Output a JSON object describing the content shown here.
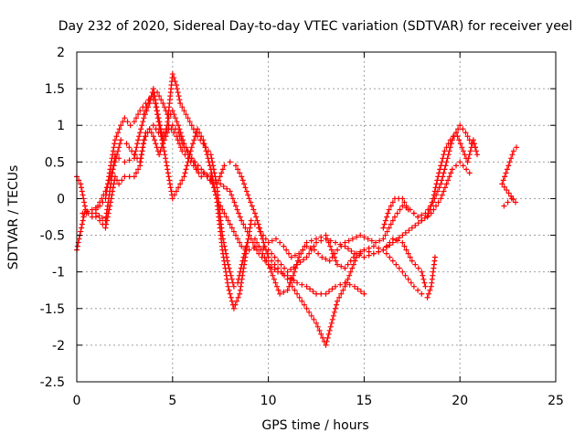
{
  "chart_data": {
    "type": "scatter",
    "title": "Day 232 of 2020, Sidereal Day-to-day VTEC variation (SDTVAR) for receiver yeel",
    "xlabel": "GPS time / hours",
    "ylabel": "SDTVAR / TECUs",
    "xlim": [
      0,
      25
    ],
    "ylim": [
      -2.5,
      2
    ],
    "x_ticks": [
      0,
      5,
      10,
      15,
      20,
      25
    ],
    "y_ticks": [
      -2.5,
      -2,
      -1.5,
      -1,
      -0.5,
      0,
      0.5,
      1,
      1.5,
      2
    ],
    "x_tick_labels": [
      "0",
      "5",
      "10",
      "15",
      "20",
      "25"
    ],
    "y_tick_labels": [
      "-2.5",
      "-2",
      "-1.5",
      "-1",
      "-0.5",
      "0",
      "0.5",
      "1",
      "1.5",
      "2"
    ],
    "grid": true,
    "marker": "plus",
    "color": "#ff0000",
    "series": [
      {
        "points": [
          [
            0.0,
            -0.7
          ],
          [
            0.2,
            -0.45
          ],
          [
            0.4,
            -0.2
          ],
          [
            0.8,
            -0.2
          ],
          [
            1.2,
            -0.3
          ],
          [
            1.5,
            -0.4
          ],
          [
            1.8,
            0.0
          ],
          [
            2.0,
            0.3
          ],
          [
            2.2,
            0.2
          ],
          [
            2.5,
            0.3
          ],
          [
            3.0,
            0.3
          ],
          [
            3.3,
            0.45
          ],
          [
            3.5,
            0.8
          ],
          [
            3.8,
            0.95
          ],
          [
            4.0,
            0.85
          ],
          [
            4.3,
            0.6
          ],
          [
            4.5,
            0.75
          ],
          [
            4.8,
            0.95
          ],
          [
            5.0,
            1.0
          ],
          [
            5.3,
            0.9
          ],
          [
            5.6,
            0.7
          ],
          [
            6.0,
            0.55
          ],
          [
            6.5,
            0.4
          ],
          [
            7.0,
            0.25
          ],
          [
            7.5,
            0.2
          ],
          [
            8.0,
            0.1
          ],
          [
            8.3,
            -0.1
          ],
          [
            8.6,
            -0.3
          ],
          [
            9.0,
            -0.5
          ],
          [
            9.5,
            -0.75
          ],
          [
            10.0,
            -0.9
          ],
          [
            10.5,
            -1.0
          ],
          [
            11.0,
            -1.05
          ],
          [
            11.5,
            -1.15
          ],
          [
            12.0,
            -1.2
          ],
          [
            12.5,
            -1.3
          ],
          [
            13.0,
            -1.3
          ],
          [
            13.5,
            -1.2
          ],
          [
            14.0,
            -1.15
          ],
          [
            14.5,
            -1.2
          ],
          [
            15.0,
            -1.3
          ]
        ]
      },
      {
        "points": [
          [
            0.3,
            -0.2
          ],
          [
            0.8,
            -0.15
          ],
          [
            1.2,
            -0.1
          ],
          [
            1.5,
            0.0
          ],
          [
            1.8,
            0.5
          ],
          [
            2.0,
            0.8
          ],
          [
            2.3,
            1.0
          ],
          [
            2.5,
            1.1
          ],
          [
            2.8,
            1.0
          ],
          [
            3.0,
            1.05
          ],
          [
            3.3,
            1.2
          ],
          [
            3.6,
            1.3
          ],
          [
            3.9,
            1.4
          ],
          [
            4.1,
            1.3
          ],
          [
            4.3,
            1.0
          ],
          [
            4.6,
            0.6
          ],
          [
            4.8,
            0.3
          ],
          [
            5.0,
            0.0
          ],
          [
            5.3,
            0.15
          ],
          [
            5.6,
            0.3
          ],
          [
            6.0,
            0.7
          ],
          [
            6.3,
            0.95
          ],
          [
            6.6,
            0.8
          ],
          [
            7.0,
            0.4
          ],
          [
            7.3,
            0.0
          ],
          [
            7.6,
            -0.15
          ],
          [
            8.0,
            -0.35
          ],
          [
            8.3,
            -0.5
          ],
          [
            8.6,
            -0.65
          ],
          [
            9.0,
            -0.7
          ],
          [
            9.5,
            -0.65
          ],
          [
            10.0,
            -0.7
          ],
          [
            10.5,
            -0.85
          ],
          [
            11.0,
            -1.0
          ],
          [
            11.5,
            -0.9
          ],
          [
            12.0,
            -0.8
          ],
          [
            12.5,
            -0.6
          ],
          [
            13.0,
            -0.55
          ],
          [
            13.5,
            -0.6
          ],
          [
            14.0,
            -0.65
          ],
          [
            14.5,
            -0.75
          ],
          [
            15.0,
            -0.8
          ],
          [
            15.5,
            -0.75
          ],
          [
            16.0,
            -0.7
          ],
          [
            16.5,
            -0.6
          ],
          [
            17.0,
            -0.5
          ],
          [
            17.5,
            -0.4
          ],
          [
            18.0,
            -0.3
          ],
          [
            18.5,
            -0.2
          ],
          [
            19.0,
            0.0
          ],
          [
            19.3,
            0.2
          ],
          [
            19.6,
            0.4
          ],
          [
            20.0,
            0.5
          ],
          [
            20.5,
            0.35
          ]
        ]
      },
      {
        "points": [
          [
            0.0,
            0.3
          ],
          [
            0.2,
            0.2
          ],
          [
            0.5,
            -0.2
          ],
          [
            0.8,
            -0.25
          ],
          [
            1.0,
            -0.2
          ],
          [
            1.5,
            -0.3
          ],
          [
            2.0,
            0.6
          ],
          [
            2.2,
            0.55
          ],
          [
            2.5,
            0.5
          ],
          [
            3.0,
            0.55
          ],
          [
            3.2,
            0.8
          ],
          [
            3.5,
            1.1
          ],
          [
            3.8,
            1.3
          ],
          [
            4.0,
            1.5
          ],
          [
            4.2,
            1.2
          ],
          [
            4.5,
            0.8
          ],
          [
            4.7,
            0.95
          ],
          [
            5.0,
            1.7
          ],
          [
            5.2,
            1.55
          ],
          [
            5.4,
            1.3
          ],
          [
            5.6,
            1.2
          ],
          [
            6.0,
            1.0
          ],
          [
            6.3,
            0.85
          ],
          [
            6.6,
            0.75
          ],
          [
            7.0,
            0.6
          ],
          [
            7.3,
            0.2
          ],
          [
            7.6,
            -0.5
          ],
          [
            7.9,
            -0.9
          ],
          [
            8.2,
            -1.2
          ],
          [
            8.4,
            -1.15
          ],
          [
            8.7,
            -0.8
          ],
          [
            9.0,
            -0.5
          ],
          [
            9.3,
            -0.55
          ],
          [
            9.6,
            -0.7
          ],
          [
            10.0,
            -0.9
          ],
          [
            10.3,
            -1.1
          ],
          [
            10.6,
            -1.3
          ],
          [
            11.0,
            -1.25
          ],
          [
            11.3,
            -1.05
          ],
          [
            11.6,
            -0.8
          ],
          [
            12.0,
            -0.6
          ],
          [
            12.5,
            -0.55
          ],
          [
            13.0,
            -0.5
          ],
          [
            13.3,
            -0.7
          ],
          [
            13.6,
            -0.9
          ],
          [
            14.0,
            -0.95
          ],
          [
            14.3,
            -0.85
          ],
          [
            14.6,
            -0.75
          ],
          [
            15.0,
            -0.7
          ],
          [
            15.5,
            -0.65
          ],
          [
            16.0,
            -0.7
          ],
          [
            16.5,
            -0.85
          ],
          [
            17.0,
            -1.0
          ],
          [
            17.3,
            -1.1
          ],
          [
            17.6,
            -1.2
          ],
          [
            18.0,
            -1.3
          ],
          [
            18.3,
            -1.35
          ],
          [
            18.5,
            -1.2
          ],
          [
            18.7,
            -0.8
          ]
        ]
      },
      {
        "points": [
          [
            3.5,
            1.15
          ],
          [
            3.8,
            1.35
          ],
          [
            4.2,
            1.45
          ],
          [
            4.5,
            1.3
          ],
          [
            4.8,
            1.1
          ],
          [
            5.0,
            1.2
          ],
          [
            5.3,
            1.0
          ],
          [
            5.6,
            0.75
          ],
          [
            6.0,
            0.55
          ],
          [
            6.3,
            0.4
          ],
          [
            6.6,
            0.35
          ],
          [
            7.0,
            0.3
          ],
          [
            7.3,
            0.0
          ],
          [
            7.6,
            -0.7
          ],
          [
            7.9,
            -1.2
          ],
          [
            8.2,
            -1.5
          ],
          [
            8.5,
            -1.3
          ],
          [
            8.8,
            -0.8
          ],
          [
            9.1,
            -0.3
          ],
          [
            9.5,
            -0.4
          ],
          [
            10.0,
            -0.8
          ],
          [
            10.5,
            -0.95
          ],
          [
            11.0,
            -1.1
          ],
          [
            11.5,
            -1.3
          ],
          [
            12.0,
            -1.5
          ],
          [
            12.5,
            -1.7
          ],
          [
            13.0,
            -2.0
          ],
          [
            13.3,
            -1.7
          ],
          [
            13.6,
            -1.4
          ],
          [
            14.0,
            -1.2
          ],
          [
            14.3,
            -1.0
          ],
          [
            14.6,
            -0.8
          ],
          [
            15.0,
            -0.7
          ],
          [
            15.5,
            -0.75
          ],
          [
            16.0,
            -0.7
          ],
          [
            16.5,
            -0.55
          ],
          [
            17.0,
            -0.6
          ],
          [
            17.5,
            -0.85
          ],
          [
            18.0,
            -1.0
          ],
          [
            18.2,
            -1.2
          ]
        ]
      },
      {
        "points": [
          [
            1.0,
            -0.15
          ],
          [
            1.5,
            0.1
          ],
          [
            2.0,
            0.5
          ],
          [
            2.3,
            0.8
          ],
          [
            2.6,
            0.75
          ],
          [
            3.0,
            0.6
          ],
          [
            3.3,
            0.5
          ],
          [
            3.6,
            0.9
          ],
          [
            4.0,
            1.0
          ],
          [
            4.4,
            0.85
          ],
          [
            4.8,
            1.0
          ],
          [
            5.2,
            0.85
          ],
          [
            5.5,
            0.65
          ],
          [
            5.8,
            0.55
          ],
          [
            6.1,
            0.45
          ],
          [
            6.5,
            0.3
          ],
          [
            6.8,
            0.3
          ],
          [
            7.1,
            0.2
          ],
          [
            7.4,
            0.25
          ],
          [
            7.7,
            0.45
          ],
          [
            8.0,
            0.5
          ],
          [
            8.3,
            0.45
          ],
          [
            8.6,
            0.3
          ],
          [
            9.0,
            0.0
          ],
          [
            9.3,
            -0.2
          ],
          [
            9.6,
            -0.45
          ],
          [
            10.0,
            -0.6
          ],
          [
            10.4,
            -0.55
          ],
          [
            10.8,
            -0.65
          ],
          [
            11.2,
            -0.8
          ],
          [
            11.6,
            -0.75
          ],
          [
            12.0,
            -0.65
          ],
          [
            12.4,
            -0.7
          ],
          [
            12.8,
            -0.8
          ],
          [
            13.2,
            -0.85
          ],
          [
            13.6,
            -0.7
          ],
          [
            14.0,
            -0.6
          ],
          [
            14.4,
            -0.55
          ],
          [
            14.8,
            -0.5
          ],
          [
            15.2,
            -0.55
          ],
          [
            15.6,
            -0.6
          ],
          [
            16.0,
            -0.55
          ],
          [
            16.3,
            -0.4
          ],
          [
            16.6,
            -0.25
          ],
          [
            17.0,
            -0.1
          ],
          [
            17.4,
            -0.15
          ],
          [
            17.8,
            -0.25
          ],
          [
            18.2,
            -0.2
          ],
          [
            18.6,
            -0.05
          ],
          [
            19.0,
            0.2
          ],
          [
            19.3,
            0.5
          ],
          [
            19.6,
            0.8
          ],
          [
            20.0,
            1.0
          ],
          [
            20.3,
            0.9
          ],
          [
            20.6,
            0.75
          ],
          [
            20.8,
            0.7
          ]
        ]
      },
      {
        "points": [
          [
            16.0,
            -0.4
          ],
          [
            16.3,
            -0.15
          ],
          [
            16.6,
            0.0
          ],
          [
            17.0,
            0.0
          ],
          [
            17.3,
            -0.15
          ],
          [
            17.6,
            -0.2
          ],
          [
            18.0,
            -0.3
          ],
          [
            18.3,
            -0.25
          ],
          [
            18.6,
            0.0
          ],
          [
            18.9,
            0.35
          ],
          [
            19.2,
            0.65
          ],
          [
            19.5,
            0.8
          ],
          [
            19.8,
            0.9
          ],
          [
            20.1,
            0.7
          ],
          [
            20.4,
            0.5
          ],
          [
            20.7,
            0.8
          ],
          [
            20.9,
            0.6
          ]
        ]
      },
      {
        "points": [
          [
            22.3,
            -0.1
          ],
          [
            22.5,
            -0.05
          ],
          [
            22.7,
            0.0
          ],
          [
            22.9,
            -0.05
          ],
          [
            22.2,
            0.2
          ],
          [
            22.4,
            0.35
          ],
          [
            22.6,
            0.5
          ],
          [
            22.8,
            0.65
          ],
          [
            22.95,
            0.7
          ]
        ]
      }
    ]
  }
}
